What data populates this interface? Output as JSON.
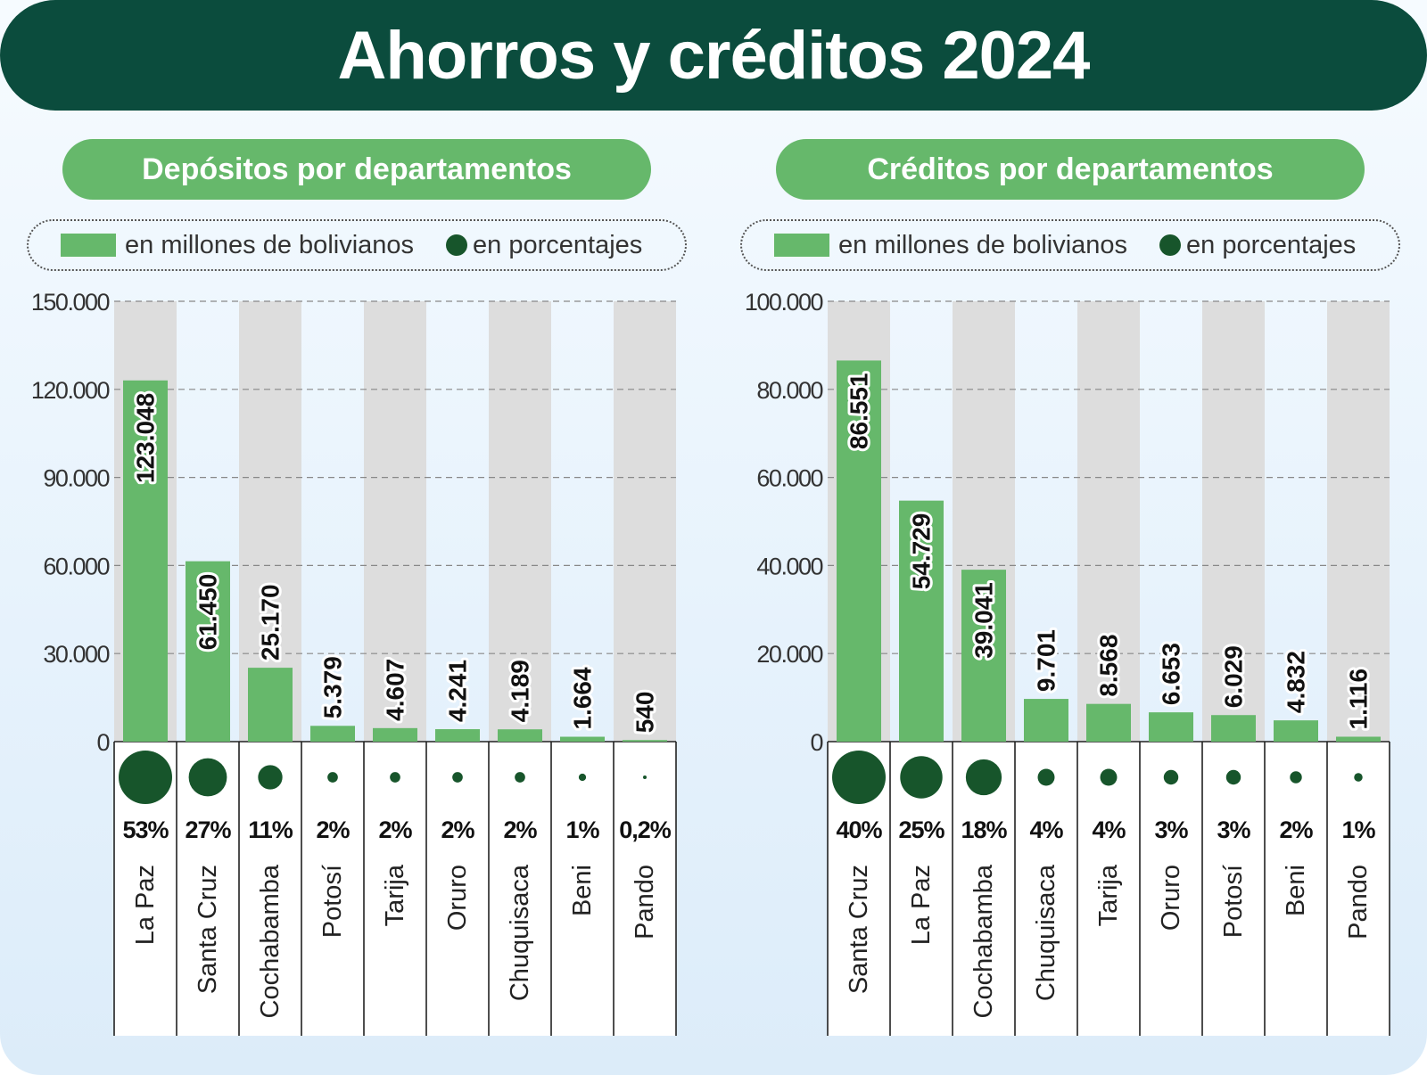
{
  "title": "Ahorros y créditos 2024",
  "legend": {
    "bar_label": "en millones de bolivianos",
    "dot_label": "en porcentajes"
  },
  "colors": {
    "title_bg": "#0b4c3d",
    "bar": "#66b86b",
    "dot": "#17552b",
    "stripe": "#dddddd"
  },
  "chart_data": [
    {
      "type": "bar",
      "title": "Depósitos por departamentos",
      "categories": [
        "La Paz",
        "Santa Cruz",
        "Cochabamba",
        "Potosí",
        "Tarija",
        "Oruro",
        "Chuquisaca",
        "Beni",
        "Pando"
      ],
      "values": [
        123048,
        61450,
        25170,
        5379,
        4607,
        4241,
        4189,
        1664,
        540
      ],
      "value_labels": [
        "123.048",
        "61.450",
        "25.170",
        "5.379",
        "4.607",
        "4.241",
        "4.189",
        "1.664",
        "540"
      ],
      "percent_values": [
        53,
        27,
        11,
        2,
        2,
        2,
        2,
        1,
        0.2
      ],
      "percent_labels": [
        "53%",
        "27%",
        "11%",
        "2%",
        "2%",
        "2%",
        "2%",
        "1%",
        "0,2%"
      ],
      "ylim": [
        0,
        150000
      ],
      "yticks": [
        0,
        30000,
        60000,
        90000,
        120000,
        150000
      ],
      "ytick_labels": [
        "0",
        "30.000",
        "60.000",
        "90.000",
        "120.000",
        "150.000"
      ],
      "grid": true,
      "legend_position": "top"
    },
    {
      "type": "bar",
      "title": "Créditos por departamentos",
      "categories": [
        "Santa Cruz",
        "La Paz",
        "Cochabamba",
        "Chuquisaca",
        "Tarija",
        "Oruro",
        "Potosí",
        "Beni",
        "Pando"
      ],
      "values": [
        86551,
        54729,
        39041,
        9701,
        8568,
        6653,
        6029,
        4832,
        1116
      ],
      "value_labels": [
        "86.551",
        "54.729",
        "39.041",
        "9.701",
        "8.568",
        "6.653",
        "6.029",
        "4.832",
        "1.116"
      ],
      "percent_values": [
        40,
        25,
        18,
        4,
        4,
        3,
        3,
        2,
        1
      ],
      "percent_labels": [
        "40%",
        "25%",
        "18%",
        "4%",
        "4%",
        "3%",
        "3%",
        "2%",
        "1%"
      ],
      "ylim": [
        0,
        100000
      ],
      "yticks": [
        0,
        20000,
        40000,
        60000,
        80000,
        100000
      ],
      "ytick_labels": [
        "0",
        "20.000",
        "40.000",
        "60.000",
        "80.000",
        "100.000"
      ],
      "grid": true,
      "legend_position": "top"
    }
  ]
}
